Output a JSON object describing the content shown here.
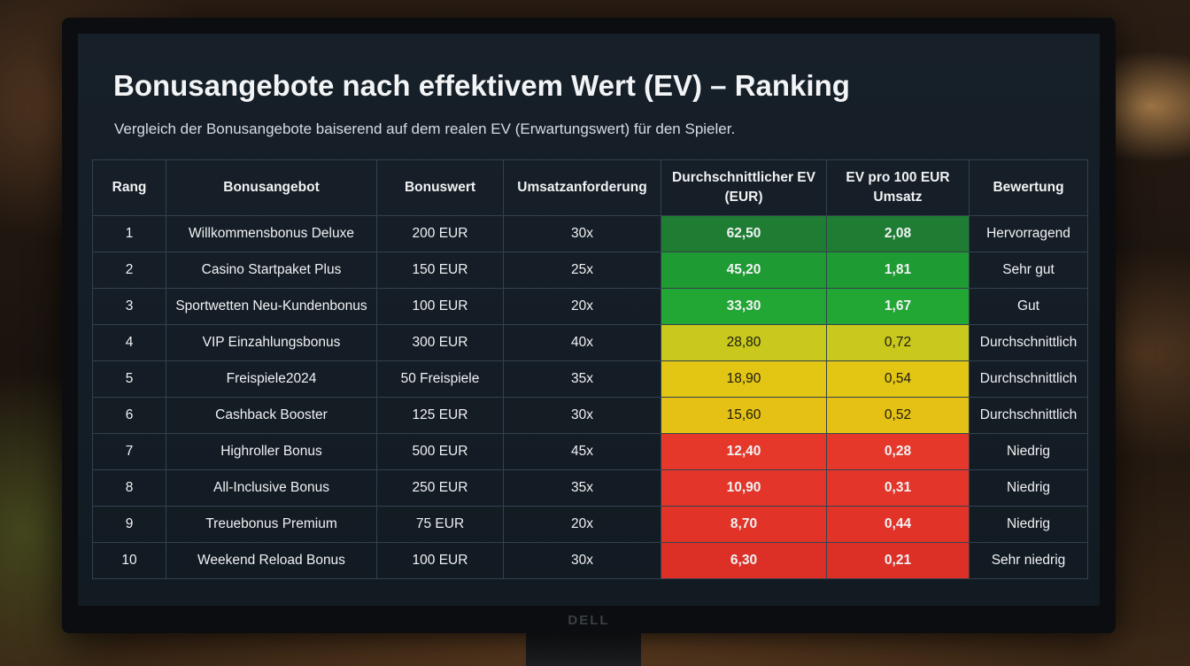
{
  "title": "Bonusangebote nach effektivem Wert (EV) – Ranking",
  "subtitle": "Vergleich der Bonusangebote baiserend auf dem realen EV (Erwartungswert) für den Spieler.",
  "monitor_brand": "DELL",
  "table": {
    "headers": {
      "rank": "Rang",
      "offer": "Bonusangebot",
      "value": "Bonuswert",
      "wagering": "Umsatzanforderung",
      "avg_ev": "Durchschnittlicher EV (EUR)",
      "ev_per_100": "EV pro 100 EUR Umsatz",
      "rating": "Bewertung"
    },
    "rows": [
      {
        "rank": "1",
        "offer": "Willkommensbonus Deluxe",
        "value": "200 EUR",
        "wagering": "30x",
        "avg_ev": "62,50",
        "ev_per_100": "2,08",
        "rating": "Hervorragend",
        "color": "#1e7d33",
        "text_dark": false
      },
      {
        "rank": "2",
        "offer": "Casino Startpaket Plus",
        "value": "150 EUR",
        "wagering": "25x",
        "avg_ev": "45,20",
        "ev_per_100": "1,81",
        "rating": "Sehr gut",
        "color": "#1f9b33",
        "text_dark": false
      },
      {
        "rank": "3",
        "offer": "Sportwetten Neu-Kundenbonus",
        "value": "100 EUR",
        "wagering": "20x",
        "avg_ev": "33,30",
        "ev_per_100": "1,67",
        "rating": "Gut",
        "color": "#22a634",
        "text_dark": false
      },
      {
        "rank": "4",
        "offer": "VIP Einzahlungsbonus",
        "value": "300 EUR",
        "wagering": "40x",
        "avg_ev": "28,80",
        "ev_per_100": "0,72",
        "rating": "Durchschnittlich",
        "color": "#c9c81c",
        "text_dark": true
      },
      {
        "rank": "5",
        "offer": "Freispiele2024",
        "value": "50 Freispiele",
        "wagering": "35x",
        "avg_ev": "18,90",
        "ev_per_100": "0,54",
        "rating": "Durchschnittlich",
        "color": "#e3c514",
        "text_dark": true
      },
      {
        "rank": "6",
        "offer": "Cashback Booster",
        "value": "125 EUR",
        "wagering": "30x",
        "avg_ev": "15,60",
        "ev_per_100": "0,52",
        "rating": "Durchschnittlich",
        "color": "#e4c114",
        "text_dark": true
      },
      {
        "rank": "7",
        "offer": "Highroller Bonus",
        "value": "500 EUR",
        "wagering": "45x",
        "avg_ev": "12,40",
        "ev_per_100": "0,28",
        "rating": "Niedrig",
        "color": "#e6382a",
        "text_dark": false
      },
      {
        "rank": "8",
        "offer": "All-Inclusive Bonus",
        "value": "250 EUR",
        "wagering": "35x",
        "avg_ev": "10,90",
        "ev_per_100": "0,31",
        "rating": "Niedrig",
        "color": "#e33529",
        "text_dark": false
      },
      {
        "rank": "9",
        "offer": "Treuebonus Premium",
        "value": "75 EUR",
        "wagering": "20x",
        "avg_ev": "8,70",
        "ev_per_100": "0,44",
        "rating": "Niedrig",
        "color": "#e13328",
        "text_dark": false
      },
      {
        "rank": "10",
        "offer": "Weekend Reload Bonus",
        "value": "100 EUR",
        "wagering": "30x",
        "avg_ev": "6,30",
        "ev_per_100": "0,21",
        "rating": "Sehr niedrig",
        "color": "#dc3027",
        "text_dark": false
      }
    ]
  }
}
